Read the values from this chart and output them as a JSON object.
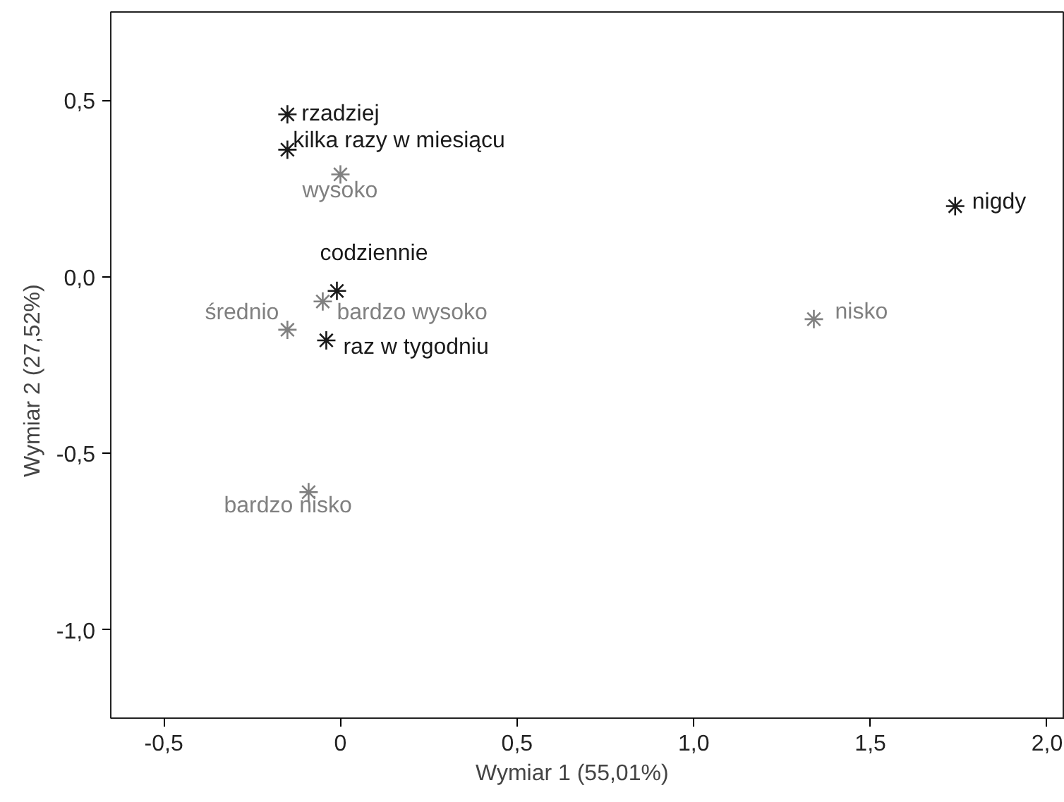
{
  "chart_data": {
    "type": "scatter",
    "xlabel": "Wymiar 1      (55,01%)",
    "ylabel": "Wymiar 2      (27,52%)",
    "xlim": [
      -0.65,
      2.05
    ],
    "ylim": [
      -1.25,
      0.75
    ],
    "xticks": [
      {
        "value": -0.5,
        "label": "-0,5"
      },
      {
        "value": 0,
        "label": "0"
      },
      {
        "value": 0.5,
        "label": "0,5"
      },
      {
        "value": 1,
        "label": "1,0"
      },
      {
        "value": 1.5,
        "label": "1,5"
      },
      {
        "value": 2,
        "label": "2,0"
      }
    ],
    "yticks": [
      {
        "value": -1,
        "label": "-1,0"
      },
      {
        "value": -0.5,
        "label": "-0,5"
      },
      {
        "value": 0,
        "label": "0,0"
      },
      {
        "value": 0.5,
        "label": "0,5"
      }
    ],
    "grid": false,
    "marker": "cross",
    "series": [
      {
        "color": "#1a1a1a",
        "x": [
          -0.15,
          -0.15,
          -0.01,
          -0.04,
          1.74
        ],
        "values": [
          0.46,
          0.36,
          -0.04,
          -0.18,
          0.2
        ]
      },
      {
        "color": "#808080",
        "x": [
          0.0,
          -0.05,
          -0.15,
          -0.09,
          1.34
        ],
        "values": [
          0.29,
          -0.07,
          -0.15,
          -0.61,
          -0.12
        ]
      }
    ],
    "annotations": [
      {
        "text": "rzadziej",
        "x": -0.15,
        "y": 0.46
      },
      {
        "text": "kilka razy w miesiącu",
        "x": -0.15,
        "y": 0.36
      },
      {
        "text": "codziennie",
        "x": -0.01,
        "y": -0.04
      },
      {
        "text": "raz w tygodniu",
        "x": -0.04,
        "y": -0.18
      },
      {
        "text": "nigdy",
        "x": 1.74,
        "y": 0.2
      },
      {
        "text": "wysoko",
        "x": 0.0,
        "y": 0.29
      },
      {
        "text": "bardzo wysoko",
        "x": -0.05,
        "y": -0.07
      },
      {
        "text": "średnio",
        "x": -0.15,
        "y": -0.15
      },
      {
        "text": "bardzo nisko",
        "x": -0.09,
        "y": -0.61
      },
      {
        "text": "nisko",
        "x": 1.34,
        "y": -0.12
      }
    ]
  }
}
